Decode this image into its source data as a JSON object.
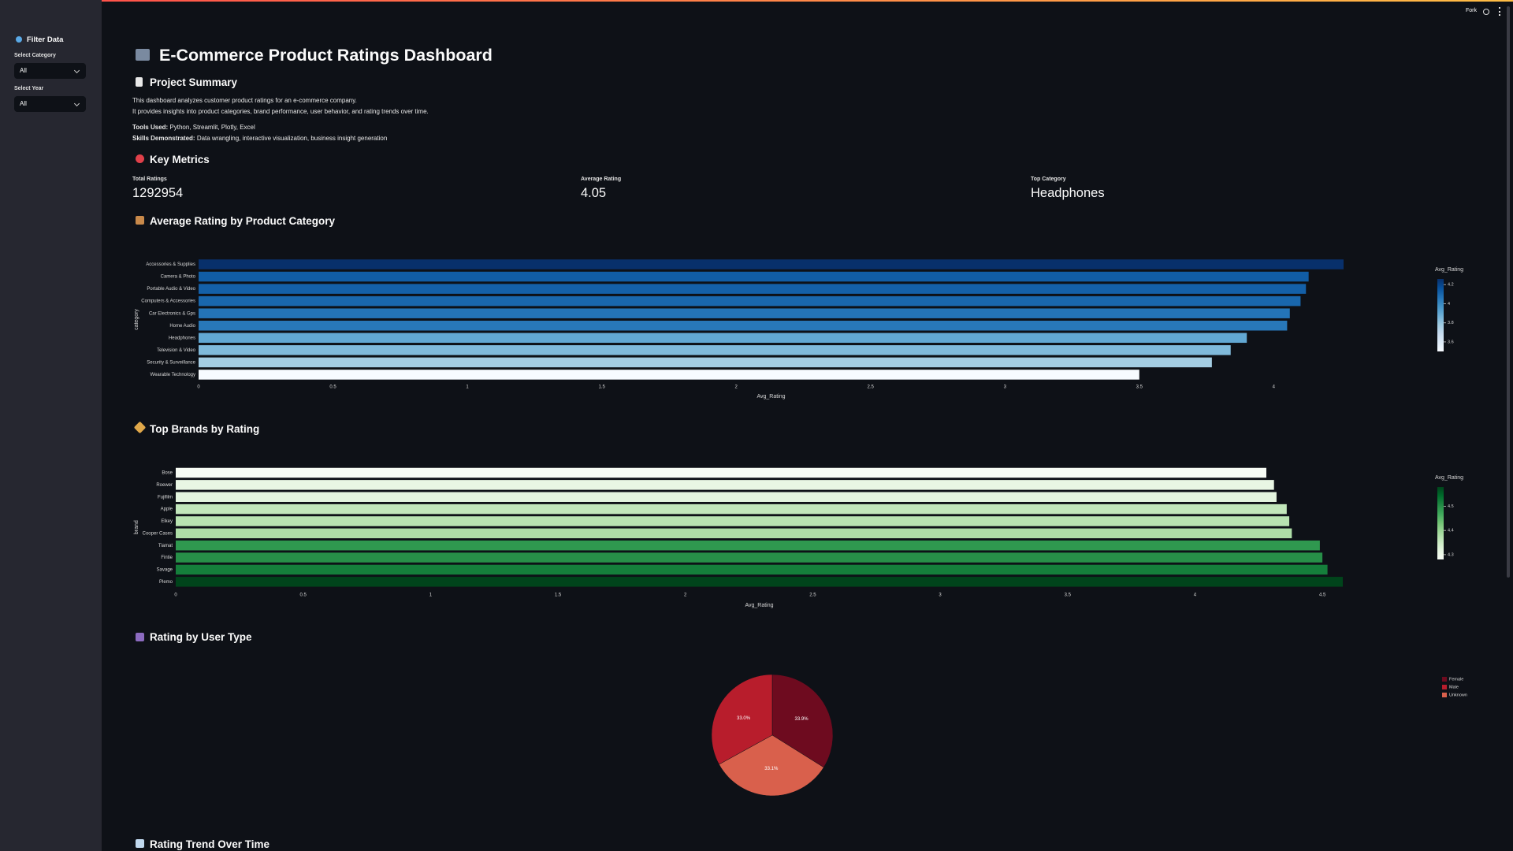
{
  "toolbar": {
    "fork": "Fork"
  },
  "sidebar": {
    "title": "Filter Data",
    "category_label": "Select Category",
    "category_value": "All",
    "year_label": "Select Year",
    "year_value": "All"
  },
  "header": {
    "title": "E-Commerce Product Ratings Dashboard"
  },
  "summary": {
    "heading": "Project Summary",
    "lines": [
      "This dashboard analyzes customer product ratings for an e-commerce company.",
      "It provides insights into product categories, brand performance, user behavior, and rating trends over time."
    ],
    "tools_label": "Tools Used:",
    "tools": "Python, Streamlit, Plotly, Excel",
    "skills_label": "Skills Demonstrated:",
    "skills": "Data wrangling, interactive visualization, business insight generation"
  },
  "metrics": {
    "heading": "Key Metrics",
    "items": [
      {
        "label": "Total Ratings",
        "value": 1292954
      },
      {
        "label": "Average Rating",
        "value": 4.05
      },
      {
        "label": "Top Category",
        "value": "Headphones"
      }
    ]
  },
  "chart_data": [
    {
      "type": "bar",
      "orientation": "h",
      "title": "Average Rating by Product Category",
      "x_label": "Avg_Rating",
      "y_label": "category",
      "categories": [
        "Accessories & Supplies",
        "Camera & Photo",
        "Portable Audio & Video",
        "Computers & Accessories",
        "Car Electronics & Gps",
        "Home Audio",
        "Headphones",
        "Television & Video",
        "Security & Surveillance",
        "Wearable Technology"
      ],
      "values": [
        4.26,
        4.13,
        4.12,
        4.1,
        4.06,
        4.05,
        3.9,
        3.84,
        3.77,
        3.5
      ],
      "xlim": [
        0,
        4.26
      ],
      "xticks": [
        0,
        0.5,
        1,
        1.5,
        2,
        2.5,
        3,
        3.5,
        4
      ],
      "colorbar_title": "Avg_Rating",
      "colorbar_ticks": [
        4.2,
        4,
        3.8,
        3.6
      ],
      "colorscale": [
        "#f7fbff",
        "#deebf7",
        "#c6dbef",
        "#9ecae1",
        "#6baed6",
        "#4292c6",
        "#2171b5",
        "#08519c",
        "#08306b"
      ]
    },
    {
      "type": "bar",
      "orientation": "h",
      "title": "Top Brands by Rating",
      "x_label": "Avg_Rating",
      "y_label": "brand",
      "categories": [
        "Bose",
        "Roewer",
        "Fujifilm",
        "Apple",
        "Elkey",
        "Cooper Cases",
        "Tiamat",
        "Fintie",
        "Savage",
        "Plemo"
      ],
      "values": [
        4.28,
        4.31,
        4.32,
        4.36,
        4.37,
        4.38,
        4.49,
        4.5,
        4.52,
        4.58
      ],
      "xlim": [
        0,
        4.58
      ],
      "xticks": [
        0,
        0.5,
        1,
        1.5,
        2,
        2.5,
        3,
        3.5,
        4,
        4.5
      ],
      "colorbar_title": "Avg_Rating",
      "colorbar_ticks": [
        4.5,
        4.4,
        4.3
      ],
      "colorscale": [
        "#f7fcf5",
        "#e5f5e0",
        "#c7e9c0",
        "#a1d99b",
        "#74c476",
        "#41ab5d",
        "#238b45",
        "#006d2c",
        "#00441b"
      ]
    },
    {
      "type": "pie",
      "title": "Rating by User Type",
      "direction": "counterclockwise",
      "labels": [
        "Female",
        "Male",
        "Unknown"
      ],
      "values": [
        33.9,
        33.0,
        33.1
      ],
      "value_labels": [
        "33.9%",
        "33.0%",
        "33.1%"
      ],
      "colors": [
        "#6e0b1f",
        "#b81d2c",
        "#d9604c"
      ]
    }
  ],
  "trend": {
    "heading": "Rating Trend Over Time"
  }
}
